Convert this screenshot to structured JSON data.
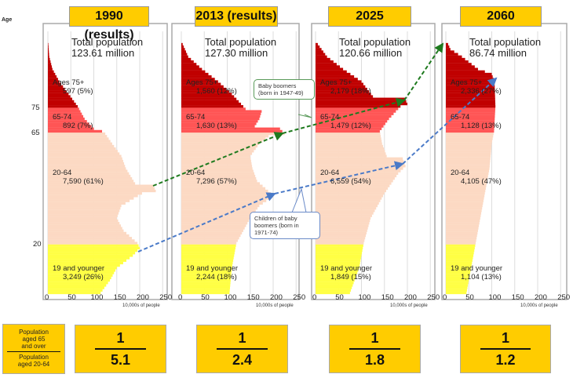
{
  "chart_data": [
    {
      "type": "bar",
      "subtype": "population-pyramid",
      "title": "1990 (results)",
      "total": "Total population\n123.61 million",
      "total_lines": [
        "Total population",
        "123.61 million"
      ],
      "xlabel": "10,000s of people",
      "xticks": [
        "0",
        "50",
        "100",
        "150",
        "200",
        "250"
      ],
      "xlim": [
        0,
        250
      ],
      "groups": [
        {
          "name": "Ages 75+",
          "value": "597 (5%)"
        },
        {
          "name": "65-74",
          "value": "892 (7%)"
        },
        {
          "name": "20-64",
          "value": "7,590 (61%)"
        },
        {
          "name": "19 and younger",
          "value": "3,249 (26%)"
        }
      ],
      "profile": [
        [
          0,
          115
        ],
        [
          5,
          135
        ],
        [
          10,
          150
        ],
        [
          15,
          185
        ],
        [
          18,
          200
        ],
        [
          20,
          195
        ],
        [
          25,
          165
        ],
        [
          30,
          150
        ],
        [
          35,
          160
        ],
        [
          40,
          205
        ],
        [
          41,
          235
        ],
        [
          43,
          230
        ],
        [
          44,
          190
        ],
        [
          50,
          170
        ],
        [
          55,
          160
        ],
        [
          60,
          140
        ],
        [
          64,
          125
        ],
        [
          65,
          118
        ],
        [
          66,
          100
        ],
        [
          70,
          80
        ],
        [
          75,
          65
        ],
        [
          80,
          45
        ],
        [
          85,
          25
        ],
        [
          90,
          10
        ],
        [
          95,
          3
        ],
        [
          100,
          1
        ]
      ],
      "ratio": {
        "num": "1",
        "den": "5.1"
      }
    },
    {
      "type": "bar",
      "subtype": "population-pyramid",
      "title": "2013 (results)",
      "total_lines": [
        "Total population",
        "127.30 million"
      ],
      "xlabel": "10,000s of people",
      "xticks": [
        "0",
        "50",
        "100",
        "150",
        "200",
        "250"
      ],
      "xlim": [
        0,
        250
      ],
      "groups": [
        {
          "name": "Ages 75+",
          "value": "1,560 (12%)"
        },
        {
          "name": "65-74",
          "value": "1,630 (13%)"
        },
        {
          "name": "20-64",
          "value": "7,296 (57%)"
        },
        {
          "name": "19 and younger",
          "value": "2,244 (18%)"
        }
      ],
      "profile": [
        [
          0,
          105
        ],
        [
          10,
          110
        ],
        [
          20,
          120
        ],
        [
          25,
          135
        ],
        [
          30,
          150
        ],
        [
          35,
          170
        ],
        [
          39,
          200
        ],
        [
          40,
          195
        ],
        [
          45,
          165
        ],
        [
          50,
          155
        ],
        [
          55,
          150
        ],
        [
          60,
          170
        ],
        [
          63,
          190
        ],
        [
          64,
          225
        ],
        [
          66,
          215
        ],
        [
          67,
          160
        ],
        [
          70,
          170
        ],
        [
          73,
          175
        ],
        [
          74,
          140
        ],
        [
          75,
          135
        ],
        [
          80,
          110
        ],
        [
          85,
          80
        ],
        [
          90,
          45
        ],
        [
          95,
          15
        ],
        [
          100,
          3
        ]
      ],
      "ratio": {
        "num": "1",
        "den": "2.4"
      }
    },
    {
      "type": "bar",
      "subtype": "population-pyramid",
      "title": "2025",
      "total_lines": [
        "Total population",
        "120.66 million"
      ],
      "xlabel": "10,000s of people",
      "xticks": [
        "0",
        "50",
        "100",
        "150",
        "200",
        "250"
      ],
      "xlim": [
        0,
        250
      ],
      "groups": [
        {
          "name": "Ages 75+",
          "value": "2,179 (18%)"
        },
        {
          "name": "65-74",
          "value": "1,479 (12%)"
        },
        {
          "name": "20-64",
          "value": "6,559 (54%)"
        },
        {
          "name": "19 and younger",
          "value": "1,849 (15%)"
        }
      ],
      "profile": [
        [
          0,
          75
        ],
        [
          10,
          95
        ],
        [
          20,
          105
        ],
        [
          30,
          120
        ],
        [
          40,
          150
        ],
        [
          48,
          180
        ],
        [
          51,
          196
        ],
        [
          54,
          190
        ],
        [
          55,
          155
        ],
        [
          60,
          145
        ],
        [
          65,
          140
        ],
        [
          70,
          160
        ],
        [
          75,
          185
        ],
        [
          76,
          200
        ],
        [
          78,
          195
        ],
        [
          79,
          125
        ],
        [
          85,
          100
        ],
        [
          90,
          60
        ],
        [
          95,
          25
        ],
        [
          100,
          5
        ]
      ],
      "ratio": {
        "num": "1",
        "den": "1.8"
      }
    },
    {
      "type": "bar",
      "subtype": "population-pyramid",
      "title": "2060",
      "total_lines": [
        "Total population",
        "86.74 million"
      ],
      "xlabel": "10,000s of people",
      "xticks": [
        "0",
        "50",
        "100",
        "150",
        "200",
        "250"
      ],
      "xlim": [
        0,
        250
      ],
      "groups": [
        {
          "name": "Ages 75+",
          "value": "2,336 (27%)"
        },
        {
          "name": "65-74",
          "value": "1,128 (13%)"
        },
        {
          "name": "20-64",
          "value": "4,105 (47%)"
        },
        {
          "name": "19 and younger",
          "value": "1,104 (13%)"
        }
      ],
      "profile": [
        [
          0,
          45
        ],
        [
          10,
          55
        ],
        [
          20,
          65
        ],
        [
          30,
          75
        ],
        [
          40,
          85
        ],
        [
          50,
          95
        ],
        [
          60,
          100
        ],
        [
          65,
          105
        ],
        [
          75,
          108
        ],
        [
          85,
          106
        ],
        [
          88,
          100
        ],
        [
          90,
          70
        ],
        [
          95,
          35
        ],
        [
          98,
          10
        ],
        [
          100,
          5
        ]
      ],
      "ratio": {
        "num": "1",
        "den": "1.2"
      }
    }
  ],
  "age_axis": {
    "label": "Age",
    "ticks": [
      "75",
      "65",
      "20"
    ]
  },
  "ratio_label": {
    "top": [
      "Population",
      "aged 65",
      "and over"
    ],
    "bottom": [
      "Population",
      "aged 20-64"
    ]
  },
  "callouts": {
    "boomers": [
      "Baby boomers",
      "(born in 1947-49)"
    ],
    "children": [
      "Children of baby",
      "boomers (born in",
      "1971-74)"
    ]
  },
  "colors": {
    "age75": "#c00000",
    "age65": "#ff5555",
    "age20": "#fcd9c3",
    "age0": "#ffff44",
    "year_box": "#ffcc00",
    "boomer_arrow": "#1e7a1e",
    "children_arrow": "#4a7ac8"
  }
}
